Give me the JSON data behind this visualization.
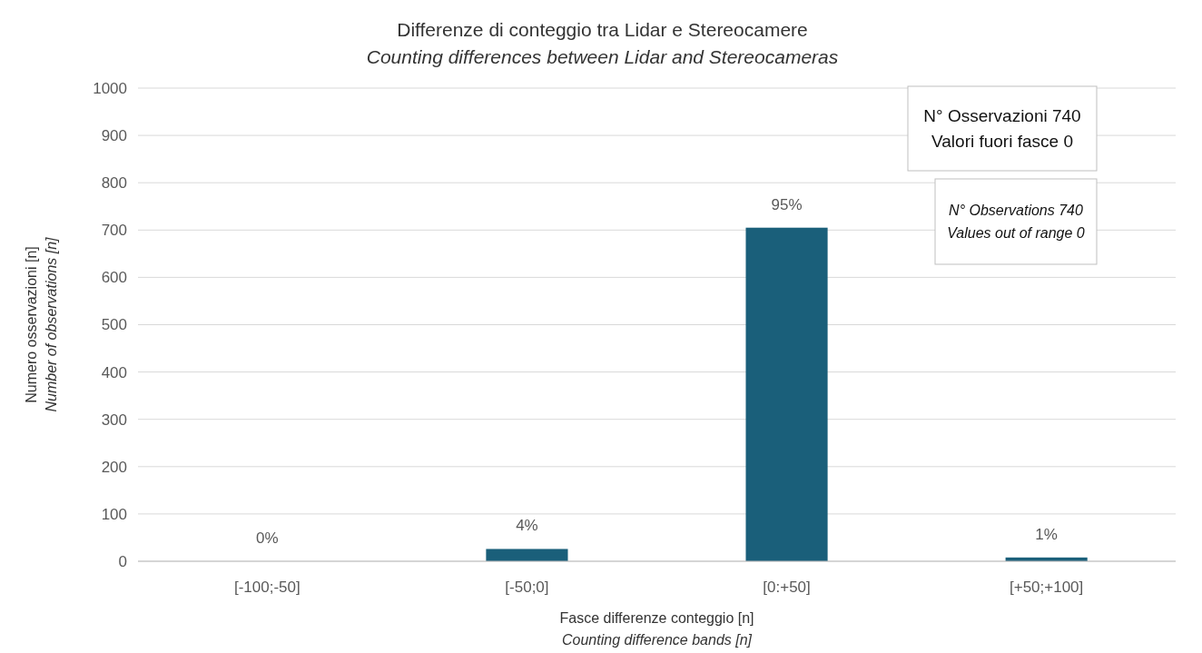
{
  "chart_data": {
    "type": "bar",
    "title": "Differenze di conteggio tra Lidar e Stereocamere",
    "subtitle": "Counting differences between Lidar and Stereocameras",
    "xlabel": "Fasce differenze conteggio [n]\nCounting difference bands [n]",
    "ylabel": "Numero osservazioni [n]\nNumber of observations [n]",
    "categories": [
      "[-100;-50]",
      "[-50;0]",
      "[0:+50]",
      "[+50;+100]"
    ],
    "values": [
      0,
      26,
      705,
      8
    ],
    "color": "#1a5f7a",
    "ylim": [
      0,
      1000
    ],
    "yticks": [
      0,
      100,
      200,
      300,
      400,
      500,
      600,
      700,
      800,
      900,
      1000
    ],
    "grid": "y",
    "annotations": [
      "N° Osservazioni 740\nValori fuori fasce 0",
      "N° Observations 740\nValues out of range 0",
      {
        "text": "0%",
        "x": "[-100;-50]",
        "y": 0
      },
      {
        "text": "4%",
        "x": "[-50;0]",
        "y": 26
      },
      {
        "text": "95%",
        "x": "[0:+50]",
        "y": 705
      },
      {
        "text": "1%",
        "x": "[+50;+100]",
        "y": 8
      }
    ]
  }
}
